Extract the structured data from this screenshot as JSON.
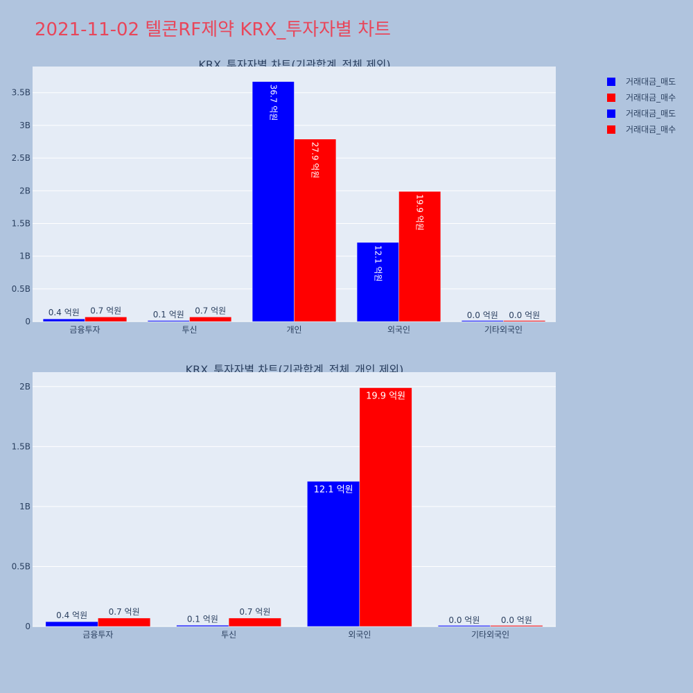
{
  "title": "2021-11-02 텔콘RF제약 KRX_투자자별 차트",
  "colors": {
    "sell": "#0000ff",
    "buy": "#ff0000",
    "plot_bg": "#e5ecf6",
    "page_bg": "#b0c4de",
    "text": "#2a3f5f"
  },
  "legend": [
    {
      "label": "거래대금_매도",
      "color": "#0000ff"
    },
    {
      "label": "거래대금_매수",
      "color": "#ff0000"
    },
    {
      "label": "거래대금_매도",
      "color": "#0000ff"
    },
    {
      "label": "거래대금_매수",
      "color": "#ff0000"
    }
  ],
  "chart_data": [
    {
      "type": "bar",
      "title": "KRX_투자자별 차트(기관합계_전체 제외)",
      "categories": [
        "금융투자",
        "투신",
        "개인",
        "외국인",
        "기타외국인"
      ],
      "series": [
        {
          "name": "거래대금_매도",
          "color": "#0000ff",
          "values": [
            40000000,
            10000000,
            3670000000,
            1210000000,
            0
          ],
          "labels": [
            "0.4 억원",
            "0.1 억원",
            "36.7 억원",
            "12.1 억원",
            "0.0 억원"
          ]
        },
        {
          "name": "거래대금_매수",
          "color": "#ff0000",
          "values": [
            70000000,
            70000000,
            2790000000,
            1990000000,
            0
          ],
          "labels": [
            "0.7 억원",
            "0.7 억원",
            "27.9 억원",
            "19.9 억원",
            "0.0 억원"
          ]
        }
      ],
      "ylim": [
        0,
        3900000000
      ],
      "yticks": [
        0,
        500000000,
        1000000000,
        1500000000,
        2000000000,
        2500000000,
        3000000000,
        3500000000
      ],
      "yticklabels": [
        "0",
        "0.5B",
        "1B",
        "1.5B",
        "2B",
        "2.5B",
        "3B",
        "3.5B"
      ],
      "inside_labels_rotated": true,
      "grid": true
    },
    {
      "type": "bar",
      "title": "KRX_투자자별 차트(기관합계_전체_개인 제외)",
      "categories": [
        "금융투자",
        "투신",
        "외국인",
        "기타외국인"
      ],
      "series": [
        {
          "name": "거래대금_매도",
          "color": "#0000ff",
          "values": [
            40000000,
            10000000,
            1210000000,
            0
          ],
          "labels": [
            "0.4 억원",
            "0.1 억원",
            "12.1 억원",
            "0.0 억원"
          ]
        },
        {
          "name": "거래대금_매수",
          "color": "#ff0000",
          "values": [
            70000000,
            70000000,
            1990000000,
            0
          ],
          "labels": [
            "0.7 억원",
            "0.7 억원",
            "19.9 억원",
            "0.0 억원"
          ]
        }
      ],
      "ylim": [
        0,
        2120000000
      ],
      "yticks": [
        0,
        500000000,
        1000000000,
        1500000000,
        2000000000
      ],
      "yticklabels": [
        "0",
        "0.5B",
        "1B",
        "1.5B",
        "2B"
      ],
      "inside_labels_rotated": false,
      "grid": true
    }
  ]
}
